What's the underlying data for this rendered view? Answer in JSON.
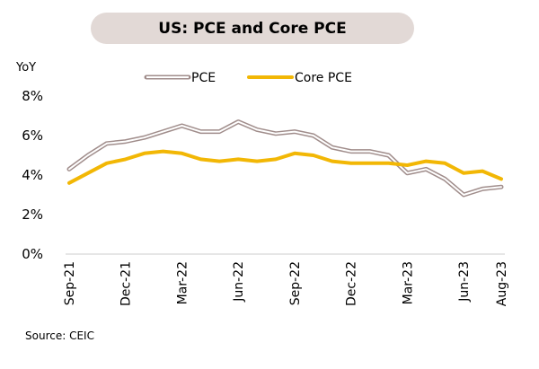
{
  "title": "US: PCE and Core PCE",
  "source": "Source: CEIC",
  "colors": {
    "title_bg": "#e2d9d6",
    "pce_outline": "#a08d8b",
    "pce_fill": "#ffffff",
    "core": "#f2b705",
    "grid": "#cccccc"
  },
  "chart_data": {
    "type": "line",
    "ylabel": "YoY",
    "ylim": [
      0,
      8
    ],
    "y_ticks": [
      "0%",
      "2%",
      "4%",
      "6%",
      "8%"
    ],
    "x": [
      "Sep-21",
      "Oct-21",
      "Nov-21",
      "Dec-21",
      "Jan-22",
      "Feb-22",
      "Mar-22",
      "Apr-22",
      "May-22",
      "Jun-22",
      "Jul-22",
      "Aug-22",
      "Sep-22",
      "Oct-22",
      "Nov-22",
      "Dec-22",
      "Jan-23",
      "Feb-23",
      "Mar-23",
      "Apr-23",
      "May-23",
      "Jun-23",
      "Jul-23",
      "Aug-23"
    ],
    "x_tick_labels": [
      "Sep-21",
      "Dec-21",
      "Mar-22",
      "Jun-22",
      "Sep-22",
      "Dec-22",
      "Mar-23",
      "Jun-23",
      "Aug-23"
    ],
    "legend_position": "top",
    "series": [
      {
        "name": "PCE",
        "values": [
          4.3,
          5.0,
          5.6,
          5.7,
          5.9,
          6.2,
          6.5,
          6.2,
          6.2,
          6.7,
          6.3,
          6.1,
          6.2,
          6.0,
          5.4,
          5.2,
          5.2,
          5.0,
          4.1,
          4.3,
          3.8,
          3.0,
          3.3,
          3.4
        ]
      },
      {
        "name": "Core PCE",
        "values": [
          3.6,
          4.1,
          4.6,
          4.8,
          5.1,
          5.2,
          5.1,
          4.8,
          4.7,
          4.8,
          4.7,
          4.8,
          5.1,
          5.0,
          4.7,
          4.6,
          4.6,
          4.6,
          4.5,
          4.7,
          4.6,
          4.1,
          4.2,
          3.8
        ]
      }
    ]
  }
}
